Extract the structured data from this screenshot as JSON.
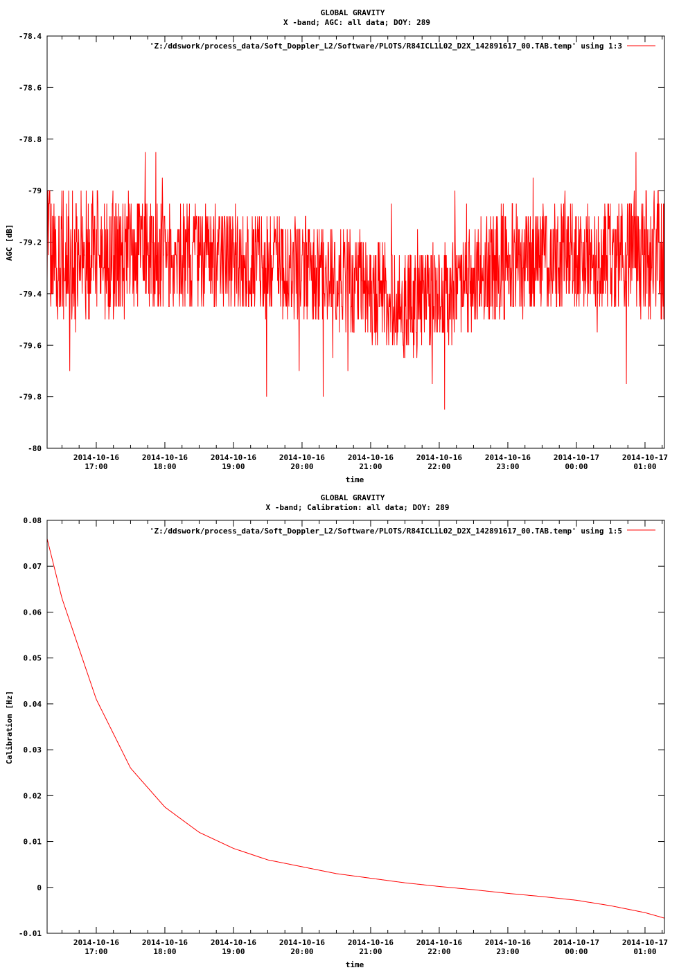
{
  "colors": {
    "line": "#ff0000",
    "axes": "#000000",
    "background": "#ffffff"
  },
  "chart_data": [
    {
      "type": "line",
      "title": "GLOBAL GRAVITY",
      "subtitle": "X -band; AGC: all data; DOY: 289",
      "xlabel": "time",
      "ylabel": "AGC [dB]",
      "ylim": [
        -80,
        -78.4
      ],
      "yticks": [
        -78.4,
        -78.6,
        -78.8,
        -79,
        -79.2,
        -79.4,
        -79.6,
        -79.8,
        -80
      ],
      "ytick_labels": [
        "-78.4",
        "-78.6",
        "-78.8",
        "-79",
        "-79.2",
        "-79.4",
        "-79.6",
        "-79.8",
        "-80"
      ],
      "xlim": [
        "2014-10-16 16:17",
        "2014-10-17 01:17"
      ],
      "xticks": [
        "2014-10-16 17:00",
        "2014-10-16 18:00",
        "2014-10-16 19:00",
        "2014-10-16 20:00",
        "2014-10-16 21:00",
        "2014-10-16 22:00",
        "2014-10-16 23:00",
        "2014-10-17 00:00",
        "2014-10-17 01:00"
      ],
      "xtick_dates": [
        "2014-10-16",
        "2014-10-16",
        "2014-10-16",
        "2014-10-16",
        "2014-10-16",
        "2014-10-16",
        "2014-10-16",
        "2014-10-17",
        "2014-10-17"
      ],
      "xtick_times": [
        "17:00",
        "18:00",
        "19:00",
        "20:00",
        "21:00",
        "22:00",
        "23:00",
        "00:00",
        "01:00"
      ],
      "legend": "'Z:/ddswork/process_data/Soft_Doppler_L2/Software/PLOTS/R84ICL1L02_D2X_142891617_00.TAB.temp' using 1:3",
      "legend_position": "top-right",
      "series": [
        {
          "x": [
            "2014-10-16 16:17",
            "2014-10-16 17:00",
            "2014-10-16 18:00",
            "2014-10-16 19:00",
            "2014-10-16 20:00",
            "2014-10-16 21:00",
            "2014-10-16 21:30",
            "2014-10-16 22:00",
            "2014-10-16 23:00",
            "2014-10-17 00:00",
            "2014-10-17 01:00",
            "2014-10-17 01:17"
          ],
          "values": [
            -79.25,
            -79.25,
            -79.25,
            -79.27,
            -79.3,
            -79.38,
            -79.45,
            -79.4,
            -79.27,
            -79.25,
            -79.25,
            -79.25
          ],
          "spread": [
            0.25,
            0.25,
            0.22,
            0.2,
            0.2,
            0.2,
            0.2,
            0.2,
            0.22,
            0.22,
            0.25,
            0.25
          ]
        }
      ]
    },
    {
      "type": "line",
      "title": "GLOBAL GRAVITY",
      "subtitle": "X -band; Calibration: all data; DOY: 289",
      "xlabel": "time",
      "ylabel": "Calibration [Hz]",
      "ylim": [
        -0.01,
        0.08
      ],
      "yticks": [
        0.08,
        0.07,
        0.06,
        0.05,
        0.04,
        0.03,
        0.02,
        0.01,
        0,
        -0.01
      ],
      "ytick_labels": [
        "0.08",
        "0.07",
        "0.06",
        "0.05",
        "0.04",
        "0.03",
        "0.02",
        "0.01",
        "0",
        "-0.01"
      ],
      "xlim": [
        "2014-10-16 16:17",
        "2014-10-17 01:17"
      ],
      "xticks": [
        "2014-10-16 17:00",
        "2014-10-16 18:00",
        "2014-10-16 19:00",
        "2014-10-16 20:00",
        "2014-10-16 21:00",
        "2014-10-16 22:00",
        "2014-10-16 23:00",
        "2014-10-17 00:00",
        "2014-10-17 01:00"
      ],
      "xtick_dates": [
        "2014-10-16",
        "2014-10-16",
        "2014-10-16",
        "2014-10-16",
        "2014-10-16",
        "2014-10-16",
        "2014-10-16",
        "2014-10-17",
        "2014-10-17"
      ],
      "xtick_times": [
        "17:00",
        "18:00",
        "19:00",
        "20:00",
        "21:00",
        "22:00",
        "23:00",
        "00:00",
        "01:00"
      ],
      "legend": "'Z:/ddswork/process_data/Soft_Doppler_L2/Software/PLOTS/R84ICL1L02_D2X_142891617_00.TAB.temp' using 1:5",
      "legend_position": "top-right",
      "series": [
        {
          "x": [
            "2014-10-16 16:17",
            "2014-10-16 16:30",
            "2014-10-16 17:00",
            "2014-10-16 17:30",
            "2014-10-16 18:00",
            "2014-10-16 18:30",
            "2014-10-16 19:00",
            "2014-10-16 19:30",
            "2014-10-16 20:00",
            "2014-10-16 20:30",
            "2014-10-16 21:00",
            "2014-10-16 21:30",
            "2014-10-16 22:00",
            "2014-10-16 22:30",
            "2014-10-16 23:00",
            "2014-10-16 23:30",
            "2014-10-17 00:00",
            "2014-10-17 00:30",
            "2014-10-17 01:00",
            "2014-10-17 01:17"
          ],
          "values": [
            0.076,
            0.063,
            0.041,
            0.026,
            0.0175,
            0.012,
            0.0085,
            0.006,
            0.0045,
            0.003,
            0.002,
            0.001,
            0.0002,
            -0.0005,
            -0.0013,
            -0.002,
            -0.0028,
            -0.004,
            -0.0055,
            -0.0067
          ]
        }
      ]
    }
  ]
}
